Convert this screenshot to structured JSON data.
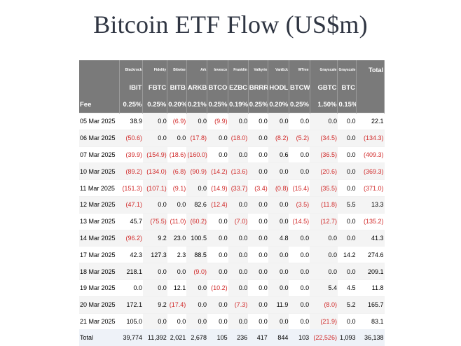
{
  "title": "Bitcoin ETF Flow (US$m)",
  "issuers": [
    "",
    "Blackrock",
    "Fidelity",
    "Bitwise",
    "Ark",
    "Invesco",
    "Franklin",
    "Valkyrie",
    "VanEck",
    "WTree",
    "Grayscale",
    "Grayscale",
    "Total"
  ],
  "tickers": [
    "",
    "IBIT",
    "FBTC",
    "BITB",
    "ARKB",
    "BTCO",
    "EZBC",
    "BRRR",
    "HODL",
    "BTCW",
    "GBTC",
    "BTC",
    ""
  ],
  "fees": [
    "Fee",
    "0.25%",
    "0.25%",
    "0.20%",
    "0.21%",
    "0.25%",
    "0.19%",
    "0.25%",
    "0.20%",
    "0.25%",
    "1.50%",
    "0.15%",
    ""
  ],
  "rows": [
    [
      "05 Mar 2025",
      "38.9",
      "0.0",
      "(6.9)",
      "0.0",
      "(9.9)",
      "0.0",
      "0.0",
      "0.0",
      "0.0",
      "0.0",
      "0.0",
      "22.1"
    ],
    [
      "06 Mar 2025",
      "(50.6)",
      "0.0",
      "0.0",
      "(17.8)",
      "0.0",
      "(18.0)",
      "0.0",
      "(8.2)",
      "(5.2)",
      "(34.5)",
      "0.0",
      "(134.3)"
    ],
    [
      "07 Mar 2025",
      "(39.9)",
      "(154.9)",
      "(18.6)",
      "(160.0)",
      "0.0",
      "0.0",
      "0.0",
      "0.6",
      "0.0",
      "(36.5)",
      "0.0",
      "(409.3)"
    ],
    [
      "10 Mar 2025",
      "(89.2)",
      "(134.0)",
      "(6.8)",
      "(90.9)",
      "(14.2)",
      "(13.6)",
      "0.0",
      "0.0",
      "0.0",
      "(20.6)",
      "0.0",
      "(369.3)"
    ],
    [
      "11 Mar 2025",
      "(151.3)",
      "(107.1)",
      "(9.1)",
      "0.0",
      "(14.9)",
      "(33.7)",
      "(3.4)",
      "(0.8)",
      "(15.4)",
      "(35.5)",
      "0.0",
      "(371.0)"
    ],
    [
      "12 Mar 2025",
      "(47.1)",
      "0.0",
      "0.0",
      "82.6",
      "(12.4)",
      "0.0",
      "0.0",
      "0.0",
      "(3.5)",
      "(11.8)",
      "5.5",
      "13.3"
    ],
    [
      "13 Mar 2025",
      "45.7",
      "(75.5)",
      "(11.0)",
      "(60.2)",
      "0.0",
      "(7.0)",
      "0.0",
      "0.0",
      "(14.5)",
      "(12.7)",
      "0.0",
      "(135.2)"
    ],
    [
      "14 Mar 2025",
      "(96.2)",
      "9.2",
      "23.0",
      "100.5",
      "0.0",
      "0.0",
      "0.0",
      "4.8",
      "0.0",
      "0.0",
      "0.0",
      "41.3"
    ],
    [
      "17 Mar 2025",
      "42.3",
      "127.3",
      "2.3",
      "88.5",
      "0.0",
      "0.0",
      "0.0",
      "0.0",
      "0.0",
      "0.0",
      "14.2",
      "274.6"
    ],
    [
      "18 Mar 2025",
      "218.1",
      "0.0",
      "0.0",
      "(9.0)",
      "0.0",
      "0.0",
      "0.0",
      "0.0",
      "0.0",
      "0.0",
      "0.0",
      "209.1"
    ],
    [
      "19 Mar 2025",
      "0.0",
      "0.0",
      "12.1",
      "0.0",
      "(10.2)",
      "0.0",
      "0.0",
      "0.0",
      "0.0",
      "5.4",
      "4.5",
      "11.8"
    ],
    [
      "20 Mar 2025",
      "172.1",
      "9.2",
      "(17.4)",
      "0.0",
      "0.0",
      "(7.3)",
      "0.0",
      "11.9",
      "0.0",
      "(8.0)",
      "5.2",
      "165.7"
    ],
    [
      "21 Mar 2025",
      "105.0",
      "0.0",
      "0.0",
      "0.0",
      "0.0",
      "0.0",
      "0.0",
      "0.0",
      "0.0",
      "(21.9)",
      "0.0",
      "83.1"
    ]
  ],
  "totals": [
    "Total",
    "39,774",
    "11,392",
    "2,021",
    "2,678",
    "105",
    "236",
    "417",
    "844",
    "103",
    "(22,526)",
    "1,093",
    "36,138"
  ],
  "colors": {
    "header_bg": "#7a7a7a",
    "negative": "#d12a2a",
    "total_row_bg": "#eef2f8",
    "title": "#2f3542"
  }
}
